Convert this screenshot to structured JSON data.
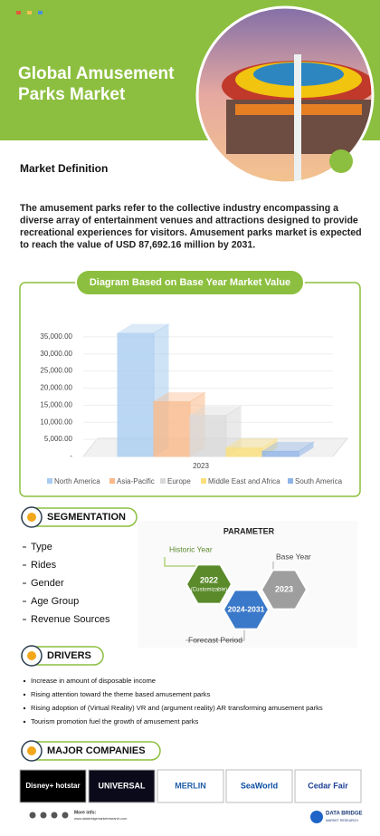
{
  "header": {
    "title_lines": [
      "Global Amusement",
      "Parks Market"
    ]
  },
  "definition": {
    "heading": "Market Definition",
    "lines": [
      "The amusement parks refer to the collective industry encompassing a",
      "diverse array of entertainment venues and attractions designed to provide",
      "recreational experiences for visitors. Amusement parks market is expected",
      "to reach the value of USD 87,692.16 million by 2031."
    ]
  },
  "chart_data": {
    "type": "bar3d",
    "title": "Diagram Based on Base Year Market Value",
    "categories": [
      "2023"
    ],
    "series": [
      {
        "name": "North America",
        "color": "#a9cdf0",
        "values": [
          36000
        ]
      },
      {
        "name": "Asia-Pacific",
        "color": "#f9b98a",
        "values": [
          16000
        ]
      },
      {
        "name": "Europe",
        "color": "#d9d9d9",
        "values": [
          12000
        ]
      },
      {
        "name": "Middle East and Africa",
        "color": "#fbe07a",
        "values": [
          2500
        ]
      },
      {
        "name": "South America",
        "color": "#8fb4e8",
        "values": [
          1500
        ]
      }
    ],
    "ylim": [
      0,
      40000
    ],
    "yticks": [
      {
        "value": 0,
        "label": "-"
      },
      {
        "value": 5000,
        "label": "5,000.00"
      },
      {
        "value": 10000,
        "label": "10,000.00"
      },
      {
        "value": 15000,
        "label": "15,000.00"
      },
      {
        "value": 20000,
        "label": "20,000.00"
      },
      {
        "value": 25000,
        "label": "25,000.00"
      },
      {
        "value": 30000,
        "label": "30,000.00"
      },
      {
        "value": 35000,
        "label": "35,000.00"
      }
    ],
    "grid": true,
    "legend": "bottom"
  },
  "segmentation": {
    "heading": "SEGMENTATION",
    "items": [
      "Type",
      "Rides",
      "Gender",
      "Age Group",
      "Revenue Sources"
    ]
  },
  "parameter": {
    "title": "PARAMETER",
    "historic_label": "Historic Year",
    "historic_year": "2022",
    "historic_note": "(Customizable)",
    "base_label": "Base Year",
    "base_year": "2023",
    "forecast_label": "Forecast Period",
    "forecast_years": "2024-2031"
  },
  "drivers": {
    "heading": "DRIVERS",
    "items": [
      "Increase in amount of disposable income",
      "Rising attention toward the theme based amusement parks",
      "Rising adoption of (Virtual Reality) VR and (argument reality) AR transforming amusement parks",
      "Tourism promotion fuel the growth of amusement parks"
    ]
  },
  "companies": {
    "heading": "MAJOR COMPANIES",
    "logos": [
      "Disney+ hotstar",
      "UNIVERSAL",
      "MERLIN",
      "SeaWorld",
      "Cedar Fair"
    ]
  },
  "footer": {
    "more_info": "More info:",
    "url": "www.databridgemarketresearch.com",
    "brand": "DATA BRIDGE",
    "brand_sub": "MARKET RESEARCH"
  }
}
